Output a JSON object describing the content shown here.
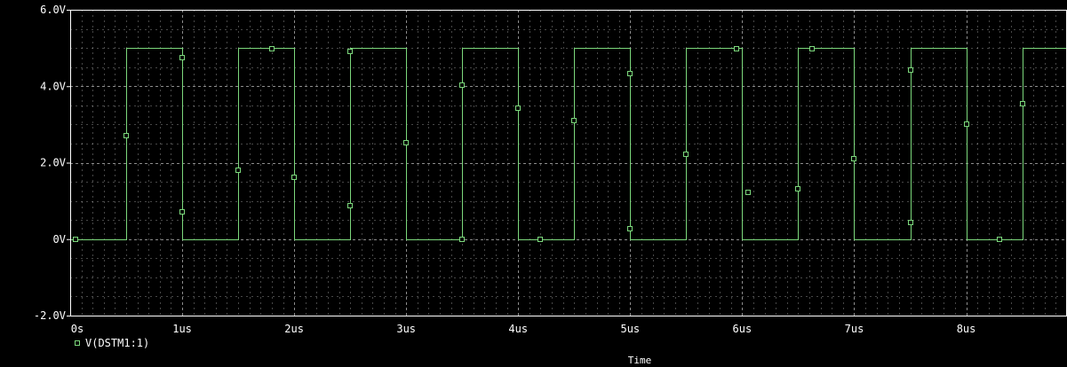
{
  "colors": {
    "background": "#000000",
    "frame": "#ffffff",
    "grid": "#ffffff",
    "trace": "#7cd87c"
  },
  "chart_data": {
    "type": "line",
    "xlabel": "Time",
    "ylabel": "",
    "xlim": [
      0,
      8.9
    ],
    "ylim": [
      -2,
      6
    ],
    "grid": true,
    "grid_style": "dotted",
    "legend_placement": "bottom-left",
    "x_ticks": [
      {
        "value": 0,
        "label": "0s"
      },
      {
        "value": 1,
        "label": "1us"
      },
      {
        "value": 2,
        "label": "2us"
      },
      {
        "value": 3,
        "label": "3us"
      },
      {
        "value": 4,
        "label": "4us"
      },
      {
        "value": 5,
        "label": "5us"
      },
      {
        "value": 6,
        "label": "6us"
      },
      {
        "value": 7,
        "label": "7us"
      },
      {
        "value": 8,
        "label": "8us"
      }
    ],
    "y_ticks": [
      {
        "value": 6,
        "label": "6.0V"
      },
      {
        "value": 4,
        "label": "4.0V"
      },
      {
        "value": 2,
        "label": "2.0V"
      },
      {
        "value": 0,
        "label": "0V"
      },
      {
        "value": -2,
        "label": "-2.0V"
      }
    ],
    "series": [
      {
        "name": "V(DSTM1:1)",
        "color": "#7cd87c",
        "marker": "square",
        "x": [
          0,
          0.5,
          0.5,
          1.0,
          1.0,
          1.5,
          1.5,
          2.0,
          2.0,
          2.5,
          2.5,
          3.0,
          3.0,
          3.5,
          3.5,
          4.0,
          4.0,
          4.5,
          4.5,
          5.0,
          5.0,
          5.5,
          5.5,
          6.0,
          6.0,
          6.5,
          6.5,
          7.0,
          7.0,
          7.5,
          7.5,
          8.0,
          8.0,
          8.5,
          8.5,
          8.9
        ],
        "y": [
          0,
          0,
          5,
          5,
          0,
          0,
          5,
          5,
          0,
          0,
          5,
          5,
          0,
          0,
          5,
          5,
          0,
          0,
          5,
          5,
          0,
          0,
          5,
          5,
          0,
          0,
          5,
          5,
          0,
          0,
          5,
          5,
          0,
          0,
          5,
          5
        ],
        "markers": [
          {
            "x": 0.05,
            "y": 0.0
          },
          {
            "x": 0.5,
            "y": 2.7
          },
          {
            "x": 1.0,
            "y": 4.75
          },
          {
            "x": 1.0,
            "y": 0.72
          },
          {
            "x": 1.5,
            "y": 1.8
          },
          {
            "x": 1.8,
            "y": 4.98
          },
          {
            "x": 2.0,
            "y": 1.62
          },
          {
            "x": 2.5,
            "y": 0.88
          },
          {
            "x": 2.5,
            "y": 4.92
          },
          {
            "x": 3.0,
            "y": 2.52
          },
          {
            "x": 3.5,
            "y": 4.02
          },
          {
            "x": 3.5,
            "y": 0.0
          },
          {
            "x": 4.0,
            "y": 3.42
          },
          {
            "x": 4.2,
            "y": 0.0
          },
          {
            "x": 4.5,
            "y": 3.1
          },
          {
            "x": 5.0,
            "y": 4.32
          },
          {
            "x": 5.0,
            "y": 0.28
          },
          {
            "x": 5.5,
            "y": 2.22
          },
          {
            "x": 5.95,
            "y": 4.98
          },
          {
            "x": 6.05,
            "y": 1.22
          },
          {
            "x": 6.5,
            "y": 1.32
          },
          {
            "x": 6.62,
            "y": 4.98
          },
          {
            "x": 7.0,
            "y": 2.1
          },
          {
            "x": 7.5,
            "y": 4.42
          },
          {
            "x": 7.5,
            "y": 0.43
          },
          {
            "x": 8.0,
            "y": 3.02
          },
          {
            "x": 8.3,
            "y": 0.0
          },
          {
            "x": 8.5,
            "y": 3.55
          }
        ]
      }
    ]
  }
}
